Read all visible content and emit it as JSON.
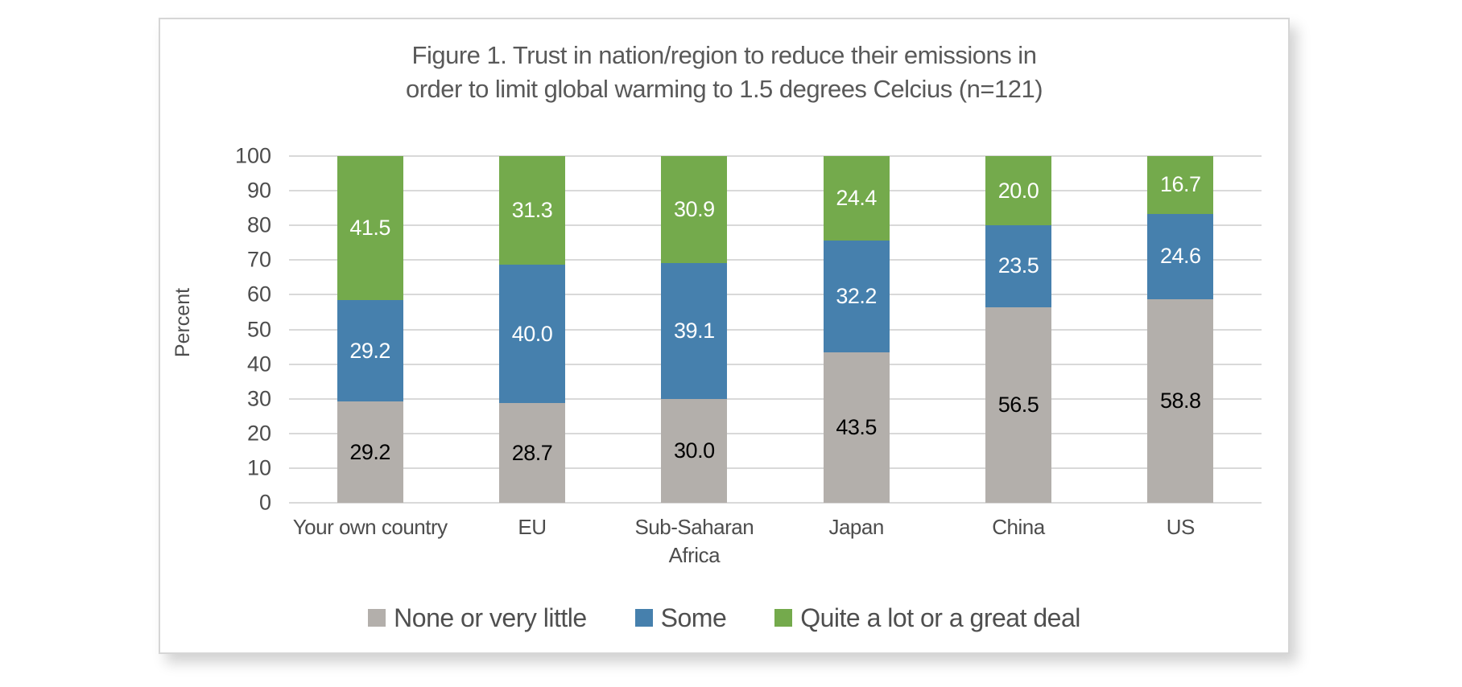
{
  "chart_data": {
    "type": "bar",
    "stacked": true,
    "title": "Figure 1. Trust in nation/region to reduce their emissions in order to limit global warming to 1.5 degrees Celcius (n=121)",
    "title_lines": [
      "Figure 1. Trust in nation/region to reduce their emissions in",
      "order to limit global warming to 1.5 degrees Celcius (n=121)"
    ],
    "ylabel": "Percent",
    "xlabel": "",
    "ylim": [
      0,
      100
    ],
    "ytick_step": 10,
    "yticks": [
      100,
      90,
      80,
      70,
      60,
      50,
      40,
      30,
      20,
      10,
      0
    ],
    "grid": true,
    "legend_position": "bottom",
    "categories": [
      {
        "label": "Your own country",
        "label2": ""
      },
      {
        "label": "EU",
        "label2": ""
      },
      {
        "label": "Sub-Saharan",
        "label2": "Africa"
      },
      {
        "label": "Japan",
        "label2": ""
      },
      {
        "label": "China",
        "label2": ""
      },
      {
        "label": "US",
        "label2": ""
      }
    ],
    "series": [
      {
        "name": "None or very little",
        "color": "#b3afab",
        "label_color": "#000000",
        "values": [
          29.2,
          28.7,
          30.0,
          43.5,
          56.5,
          58.8
        ],
        "labels": [
          "29.2",
          "28.7",
          "30.0",
          "43.5",
          "56.5",
          "58.8"
        ]
      },
      {
        "name": "Some",
        "color": "#4680ad",
        "label_color": "#ffffff",
        "values": [
          29.2,
          40.0,
          39.1,
          32.2,
          23.5,
          24.6
        ],
        "labels": [
          "29.2",
          "40.0",
          "39.1",
          "32.2",
          "23.5",
          "24.6"
        ]
      },
      {
        "name": "Quite a lot or a great deal",
        "color": "#74aa4c",
        "label_color": "#ffffff",
        "values": [
          41.5,
          31.3,
          30.9,
          24.4,
          20.0,
          16.7
        ],
        "labels": [
          "41.5",
          "31.3",
          "30.9",
          "24.4",
          "20.0",
          "16.7"
        ]
      }
    ],
    "colors": {
      "gridline": "#d9d9d9",
      "axis_text": "#4d4d4d",
      "title_text": "#595959",
      "card_border": "#d6d6d6"
    }
  }
}
